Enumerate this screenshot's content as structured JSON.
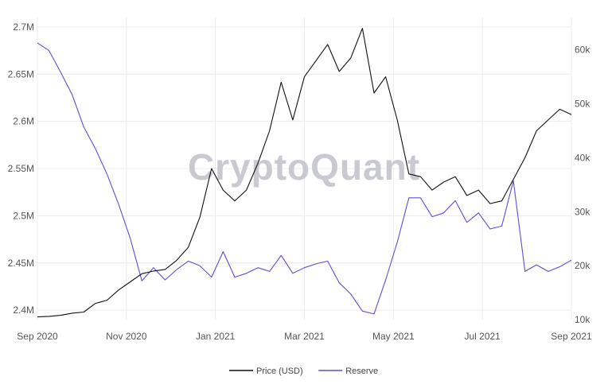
{
  "watermark": "CryptoQuant",
  "chart_data": {
    "type": "line",
    "grid": true,
    "legend_position": "bottom-center",
    "x_ticks": [
      "Sep 2020",
      "Nov 2020",
      "Jan 2021",
      "Mar 2021",
      "May 2021",
      "Jul 2021",
      "Sep 2021"
    ],
    "x": [
      "Sep 2020",
      "Sep 2020",
      "Oct 2020",
      "Oct 2020",
      "Oct 2020",
      "Oct 2020",
      "Nov 2020",
      "Nov 2020",
      "Nov 2020",
      "Nov 2020",
      "Dec 2020",
      "Dec 2020",
      "Dec 2020",
      "Dec 2020",
      "Jan 2021",
      "Jan 2021",
      "Jan 2021",
      "Jan 2021",
      "Feb 2021",
      "Feb 2021",
      "Feb 2021",
      "Feb 2021",
      "Mar 2021",
      "Mar 2021",
      "Mar 2021",
      "Mar 2021",
      "Apr 2021",
      "Apr 2021",
      "Apr 2021",
      "Apr 2021",
      "May 2021",
      "May 2021",
      "May 2021",
      "May 2021",
      "Jun 2021",
      "Jun 2021",
      "Jun 2021",
      "Jun 2021",
      "Jul 2021",
      "Jul 2021",
      "Jul 2021",
      "Jul 2021",
      "Aug 2021",
      "Aug 2021",
      "Aug 2021",
      "Aug 2021",
      "Sep 2021"
    ],
    "y_left_ticks": [
      "2.4M",
      "2.45M",
      "2.5M",
      "2.55M",
      "2.6M",
      "2.65M",
      "2.7M"
    ],
    "y_left_range": [
      2.39,
      2.71
    ],
    "y_right_ticks": [
      "10k",
      "20k",
      "30k",
      "40k",
      "50k",
      "60k"
    ],
    "y_right_range": [
      10000,
      66000
    ],
    "series": [
      {
        "name": "Reserve",
        "axis": "left",
        "color": "#5b4fd6",
        "values": [
          2.683,
          2.675,
          2.652,
          2.628,
          2.594,
          2.571,
          2.544,
          2.512,
          2.476,
          2.431,
          2.445,
          2.432,
          2.443,
          2.452,
          2.447,
          2.435,
          2.462,
          2.435,
          2.439,
          2.445,
          2.441,
          2.458,
          2.439,
          2.445,
          2.449,
          2.452,
          2.429,
          2.417,
          2.399,
          2.396,
          2.432,
          2.472,
          2.519,
          2.519,
          2.499,
          2.503,
          2.516,
          2.493,
          2.503,
          2.486,
          2.489,
          2.537,
          2.441,
          2.448,
          2.441,
          2.446,
          2.453
        ]
      },
      {
        "name": "Price (USD)",
        "axis": "right",
        "color": "#111111",
        "values": [
          10500,
          10600,
          10800,
          11200,
          11400,
          13000,
          13600,
          15500,
          17000,
          18500,
          19000,
          19300,
          21000,
          23400,
          29000,
          38000,
          34000,
          32000,
          34000,
          39000,
          45000,
          54000,
          47000,
          55000,
          58000,
          61000,
          56000,
          58500,
          64000,
          52000,
          55000,
          47000,
          37000,
          36500,
          34000,
          35500,
          36500,
          33000,
          34000,
          31500,
          32000,
          36000,
          40000,
          45000,
          47000,
          49000,
          48000
        ]
      }
    ]
  }
}
